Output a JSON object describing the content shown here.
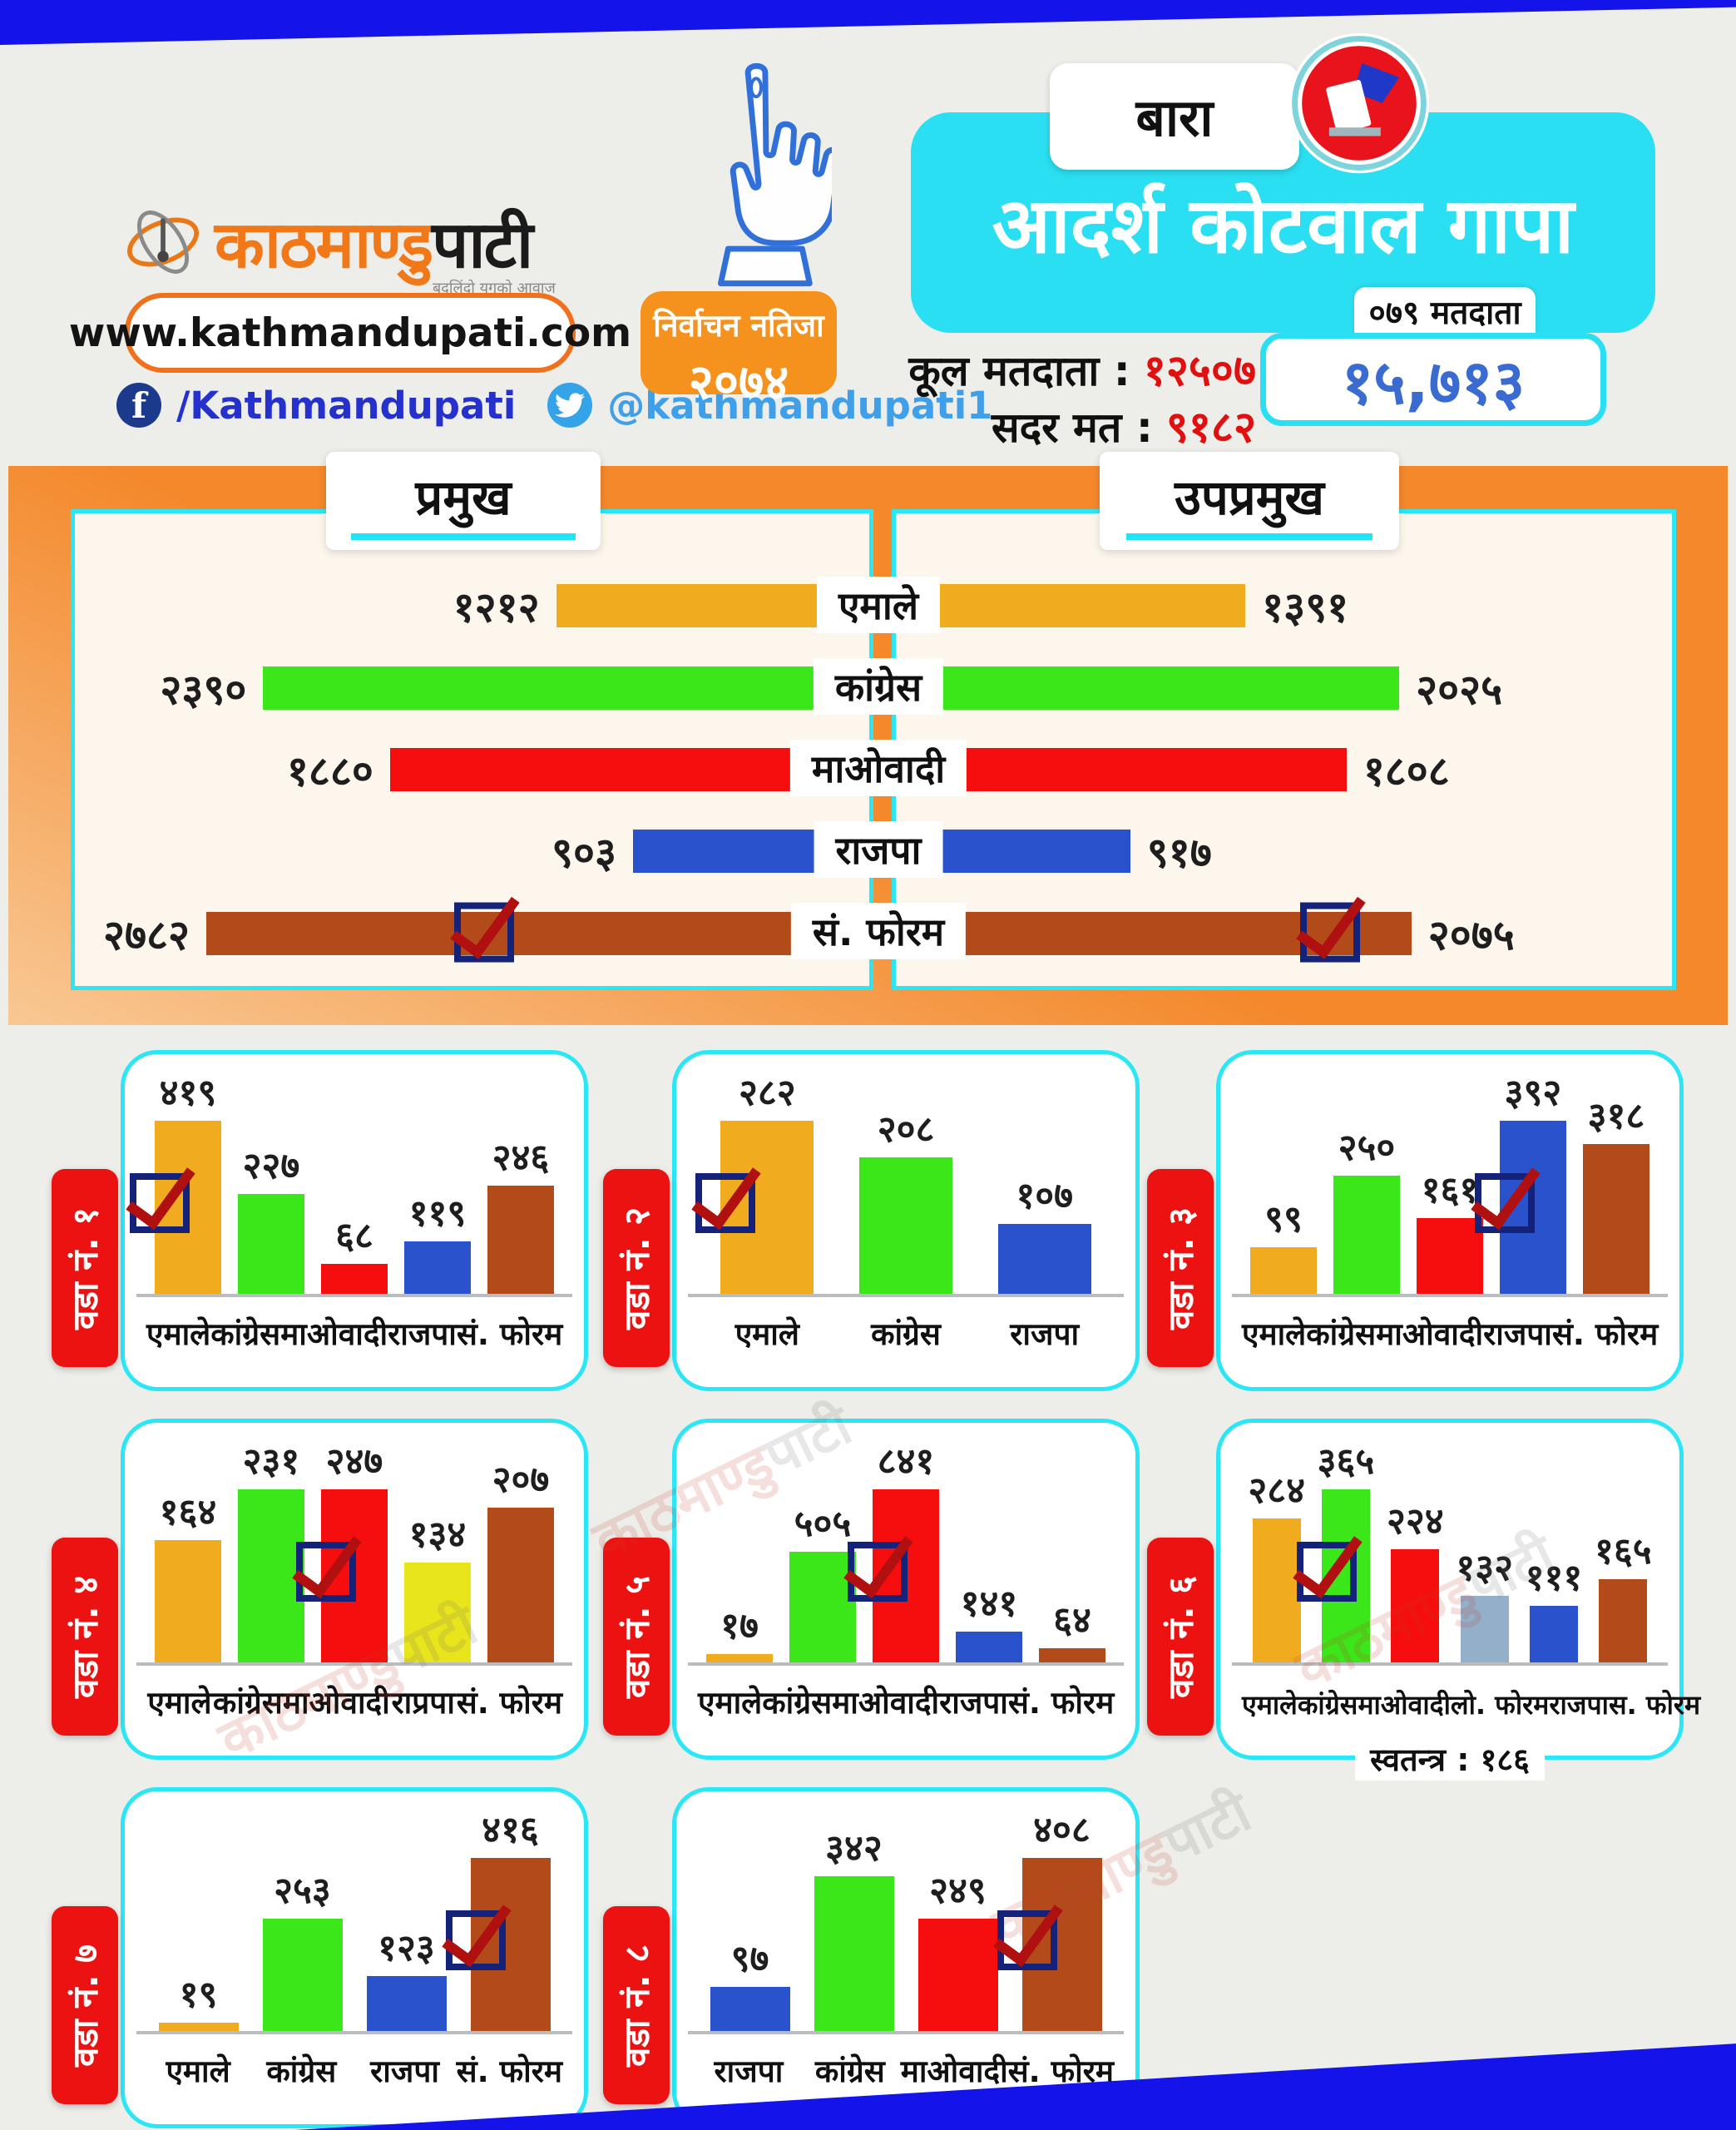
{
  "brand": {
    "logo_part1": "काठमाण्डु",
    "logo_part2": "पाटी",
    "tagline": "बदलिंदो युगको आवाज",
    "website": "www.kathmandupati.com",
    "facebook_icon_letter": "f",
    "facebook": "/Kathmandupati",
    "twitter": "@kathmandupati1"
  },
  "badge": {
    "line1": "निर्वाचन नतिजा",
    "year": "२०७४"
  },
  "header": {
    "district": "बारा",
    "municipality": "आदर्श कोटवाल गापा",
    "total_voters_label": "कूल मतदाता :",
    "total_voters": "१२५०७",
    "valid_votes_label": "सदर मत :",
    "valid_votes": "९१८२",
    "tab_label": "०७९ मतदाता",
    "big_number": "१५,७१३"
  },
  "watermark": {
    "part1": "काठमाण्डु",
    "part2": "पाटी"
  },
  "colors": {
    "accent_cyan": "#2BDFF2",
    "band_blue": "#1414EA",
    "orange": "#F4882B",
    "red_label": "#ED1212",
    "value_red": "#E01010",
    "big_number_blue": "#3A6BD0"
  },
  "party_colors": {
    "एमाले": "#F0AC1E",
    "कांग्रेस": "#3BE619",
    "माओवादी": "#F60D0D",
    "राजपा": "#2A52CC",
    "सं. फोरम": "#B24A1A",
    "स. फोरम": "#B24A1A",
    "राप्रपा": "#E9E51C",
    "लो. फोरम": "#93AFC9"
  },
  "chart_data": [
    {
      "id": "pramukh",
      "type": "bar",
      "orientation": "horizontal",
      "bar_direction": "left",
      "title": "प्रमुख",
      "scale_max": 3100,
      "winner_index": 4,
      "check_pos": 0.38,
      "rows": [
        {
          "party": "एमाले",
          "value": 1212,
          "label": "१२१२"
        },
        {
          "party": "कांग्रेस",
          "value": 2390,
          "label": "२३९०"
        },
        {
          "party": "माओवादी",
          "value": 1880,
          "label": "१८८०"
        },
        {
          "party": "राजपा",
          "value": 903,
          "label": "९०३"
        },
        {
          "party": "सं. फोरम",
          "value": 2782,
          "label": "२७८२"
        }
      ]
    },
    {
      "id": "upapramukh",
      "type": "bar",
      "orientation": "horizontal",
      "bar_direction": "right",
      "title": "उपप्रमुख",
      "scale_max": 3100,
      "winner_index": 4,
      "check_pos": 0.78,
      "rows": [
        {
          "party": "एमाले",
          "value": 1391,
          "label": "१३९१"
        },
        {
          "party": "कांग्रेस",
          "value": 2025,
          "label": "२०२५"
        },
        {
          "party": "माओवादी",
          "value": 1808,
          "label": "१८०८"
        },
        {
          "party": "राजपा",
          "value": 917,
          "label": "९१७"
        },
        {
          "party": "सं. फोरम",
          "value": 2075,
          "label": "२०७५"
        }
      ]
    },
    {
      "id": "ward-1",
      "type": "bar",
      "orientation": "vertical",
      "title": "वडा नं. १",
      "winner_index": 0,
      "bars": [
        {
          "party": "एमाले",
          "value": 419,
          "label": "४१९"
        },
        {
          "party": "कांग्रेस",
          "value": 227,
          "label": "२२७"
        },
        {
          "party": "माओवादी",
          "value": 68,
          "label": "६८"
        },
        {
          "party": "राजपा",
          "value": 119,
          "label": "११९"
        },
        {
          "party": "सं. फोरम",
          "value": 246,
          "label": "२४६"
        }
      ]
    },
    {
      "id": "ward-2",
      "type": "bar",
      "orientation": "vertical",
      "title": "वडा नं. २",
      "winner_index": 0,
      "bars": [
        {
          "party": "एमाले",
          "value": 282,
          "label": "२८२"
        },
        {
          "party": "कांग्रेस",
          "value": 208,
          "label": "२०८"
        },
        {
          "party": "राजपा",
          "value": 107,
          "label": "१०७"
        }
      ]
    },
    {
      "id": "ward-3",
      "type": "bar",
      "orientation": "vertical",
      "title": "वडा नं. ३",
      "winner_index": 3,
      "bars": [
        {
          "party": "एमाले",
          "value": 99,
          "label": "९९"
        },
        {
          "party": "कांग्रेस",
          "value": 250,
          "label": "२५०"
        },
        {
          "party": "माओवादी",
          "value": 161,
          "label": "१६१"
        },
        {
          "party": "राजपा",
          "value": 392,
          "label": "३९२"
        },
        {
          "party": "सं. फोरम",
          "value": 318,
          "label": "३१८"
        }
      ]
    },
    {
      "id": "ward-4",
      "type": "bar",
      "orientation": "vertical",
      "title": "वडा नं. ४",
      "winner_index": 2,
      "bars": [
        {
          "party": "एमाले",
          "value": 164,
          "label": "१६४"
        },
        {
          "party": "कांग्रेस",
          "value": 231,
          "label": "२३१"
        },
        {
          "party": "माओवादी",
          "value": 247,
          "label": "२४७"
        },
        {
          "party": "राप्रपा",
          "value": 134,
          "label": "१३४"
        },
        {
          "party": "सं. फोरम",
          "value": 207,
          "label": "२०७"
        }
      ]
    },
    {
      "id": "ward-5",
      "type": "bar",
      "orientation": "vertical",
      "title": "वडा नं. ५",
      "winner_index": 2,
      "bars": [
        {
          "party": "एमाले",
          "value": 17,
          "label": "१७"
        },
        {
          "party": "कांग्रेस",
          "value": 505,
          "label": "५०५"
        },
        {
          "party": "माओवादी",
          "value": 841,
          "label": "८४१"
        },
        {
          "party": "राजपा",
          "value": 141,
          "label": "१४१"
        },
        {
          "party": "सं. फोरम",
          "value": 64,
          "label": "६४"
        }
      ]
    },
    {
      "id": "ward-6",
      "type": "bar",
      "orientation": "vertical",
      "title": "वडा नं. ६",
      "winner_index": 1,
      "footnote": {
        "label": "स्वतन्त्र",
        "value": "१८६"
      },
      "bars": [
        {
          "party": "एमाले",
          "value": 284,
          "label": "२८४"
        },
        {
          "party": "कांग्रेस",
          "value": 365,
          "label": "३६५"
        },
        {
          "party": "माओवादी",
          "value": 224,
          "label": "२२४"
        },
        {
          "party": "लो. फोरम",
          "value": 132,
          "label": "१३२"
        },
        {
          "party": "राजपा",
          "value": 111,
          "label": "१११"
        },
        {
          "party": "स. फोरम",
          "value": 165,
          "label": "१६५"
        }
      ]
    },
    {
      "id": "ward-7",
      "type": "bar",
      "orientation": "vertical",
      "title": "वडा नं. ७",
      "winner_index": 3,
      "bars": [
        {
          "party": "एमाले",
          "value": 19,
          "label": "१९"
        },
        {
          "party": "कांग्रेस",
          "value": 253,
          "label": "२५३"
        },
        {
          "party": "राजपा",
          "value": 123,
          "label": "१२३"
        },
        {
          "party": "सं. फोरम",
          "value": 416,
          "label": "४१६"
        }
      ]
    },
    {
      "id": "ward-8",
      "type": "bar",
      "orientation": "vertical",
      "title": "वडा नं. ८",
      "winner_index": 3,
      "bars": [
        {
          "party": "राजपा",
          "value": 97,
          "label": "९७"
        },
        {
          "party": "कांग्रेस",
          "value": 342,
          "label": "३४२"
        },
        {
          "party": "माओवादी",
          "value": 249,
          "label": "२४९"
        },
        {
          "party": "सं. फोरम",
          "value": 408,
          "label": "४०८"
        }
      ]
    }
  ]
}
